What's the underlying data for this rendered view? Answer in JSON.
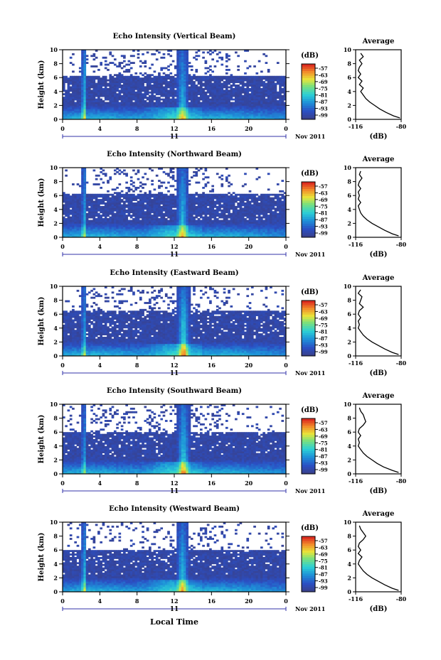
{
  "figure": {
    "xlabel": "Local Time"
  },
  "chart_data": [
    {
      "type": "heatmap",
      "title": "Echo Intensity (Vertical Beam)",
      "ylabel": "Height (km)",
      "xlim": [
        0,
        24
      ],
      "ylim": [
        0,
        10
      ],
      "x_ticks": [
        "0",
        "4",
        "8",
        "12",
        "16",
        "20",
        "0"
      ],
      "y_ticks": [
        "0",
        "2",
        "4",
        "6",
        "8",
        "10"
      ],
      "date_label": "11",
      "date_right": "Nov 2011",
      "colorbar": {
        "unit": "(dB)",
        "ticks": [
          "-57",
          "-63",
          "-69",
          "-75",
          "-81",
          "-87",
          "-93",
          "-99"
        ]
      },
      "events": [
        {
          "time": 2.3,
          "strength": 1.0
        },
        {
          "time": 12.9,
          "strength": 0.75
        }
      ],
      "layer_top_km": 6.3,
      "average_profile": {
        "title": "Average",
        "xlabel": "(dB)",
        "xlim": [
          -116,
          -80
        ],
        "ylim": [
          0,
          10
        ],
        "x_ticks": [
          "-116",
          "-80"
        ],
        "y_ticks": [
          "0",
          "2",
          "4",
          "6",
          "8",
          "10"
        ],
        "height_km": [
          0.2,
          0.5,
          1.0,
          1.5,
          2.0,
          2.5,
          3.0,
          3.5,
          4.0,
          4.5,
          5.0,
          5.5,
          6.0,
          6.5,
          7.0,
          7.5,
          8.0,
          8.5,
          9.0,
          9.5
        ],
        "value_db": [
          -81,
          -86,
          -92,
          -97,
          -101,
          -105,
          -108,
          -110,
          -112,
          -110,
          -113,
          -111,
          -114,
          -112,
          -114,
          -113,
          -111,
          -113,
          -110,
          -112
        ]
      }
    },
    {
      "type": "heatmap",
      "title": "Echo Intensity (Northward Beam)",
      "ylabel": "Height (km)",
      "xlim": [
        0,
        24
      ],
      "ylim": [
        0,
        10
      ],
      "x_ticks": [
        "0",
        "4",
        "8",
        "12",
        "16",
        "20",
        "0"
      ],
      "y_ticks": [
        "0",
        "2",
        "4",
        "6",
        "8",
        "10"
      ],
      "date_label": "11",
      "date_right": "Nov 2011",
      "colorbar": {
        "unit": "(dB)",
        "ticks": [
          "-57",
          "-63",
          "-69",
          "-75",
          "-81",
          "-87",
          "-93",
          "-99"
        ]
      },
      "events": [
        {
          "time": 2.3,
          "strength": 0.8
        },
        {
          "time": 12.9,
          "strength": 0.8
        }
      ],
      "layer_top_km": 6.2,
      "average_profile": {
        "title": "Average",
        "xlabel": "(dB)",
        "xlim": [
          -116,
          -80
        ],
        "ylim": [
          0,
          10
        ],
        "x_ticks": [
          "-116",
          "-80"
        ],
        "y_ticks": [
          "0",
          "2",
          "4",
          "6",
          "8",
          "10"
        ],
        "height_km": [
          0.2,
          0.5,
          1.0,
          1.5,
          2.0,
          2.5,
          3.0,
          3.5,
          4.0,
          4.5,
          5.0,
          5.5,
          6.0,
          6.5,
          7.0,
          7.5,
          8.0,
          8.5,
          9.0,
          9.5
        ],
        "value_db": [
          -82,
          -87,
          -93,
          -98,
          -103,
          -107,
          -110,
          -112,
          -113,
          -114,
          -112,
          -114,
          -113,
          -114,
          -112,
          -114,
          -113,
          -111,
          -113,
          -112
        ]
      }
    },
    {
      "type": "heatmap",
      "title": "Echo Intensity (Eastward Beam)",
      "ylabel": "Height (km)",
      "xlim": [
        0,
        24
      ],
      "ylim": [
        0,
        10
      ],
      "x_ticks": [
        "0",
        "4",
        "8",
        "12",
        "16",
        "20",
        "0"
      ],
      "y_ticks": [
        "0",
        "2",
        "4",
        "6",
        "8",
        "10"
      ],
      "date_label": "11",
      "date_right": "Nov 2011",
      "colorbar": {
        "unit": "(dB)",
        "ticks": [
          "-57",
          "-63",
          "-69",
          "-75",
          "-81",
          "-87",
          "-93",
          "-99"
        ]
      },
      "events": [
        {
          "time": 2.3,
          "strength": 0.8
        },
        {
          "time": 13.0,
          "strength": 1.0
        }
      ],
      "layer_top_km": 6.4,
      "average_profile": {
        "title": "Average",
        "xlabel": "(dB)",
        "xlim": [
          -116,
          -80
        ],
        "ylim": [
          0,
          10
        ],
        "x_ticks": [
          "-116",
          "-80"
        ],
        "y_ticks": [
          "0",
          "2",
          "4",
          "6",
          "8",
          "10"
        ],
        "height_km": [
          0.2,
          0.5,
          1.0,
          1.5,
          2.0,
          2.5,
          3.0,
          3.5,
          4.0,
          4.5,
          5.0,
          5.5,
          6.0,
          6.5,
          7.0,
          7.5,
          8.0,
          8.5,
          9.0,
          9.5
        ],
        "value_db": [
          -82,
          -87,
          -93,
          -98,
          -103,
          -107,
          -110,
          -112,
          -114,
          -113,
          -114,
          -112,
          -114,
          -113,
          -110,
          -113,
          -112,
          -111,
          -114,
          -112
        ]
      }
    },
    {
      "type": "heatmap",
      "title": "Echo Intensity (Southward Beam)",
      "ylabel": "Height (km)",
      "xlim": [
        0,
        24
      ],
      "ylim": [
        0,
        10
      ],
      "x_ticks": [
        "0",
        "4",
        "8",
        "12",
        "16",
        "20",
        "0"
      ],
      "y_ticks": [
        "0",
        "2",
        "4",
        "6",
        "8",
        "10"
      ],
      "date_label": "11",
      "date_right": "Nov 2011",
      "colorbar": {
        "unit": "(dB)",
        "ticks": [
          "-57",
          "-63",
          "-69",
          "-75",
          "-81",
          "-87",
          "-93",
          "-99"
        ]
      },
      "events": [
        {
          "time": 2.3,
          "strength": 0.7
        },
        {
          "time": 13.0,
          "strength": 0.9
        }
      ],
      "layer_top_km": 6.1,
      "average_profile": {
        "title": "Average",
        "xlabel": "(dB)",
        "xlim": [
          -116,
          -80
        ],
        "ylim": [
          0,
          10
        ],
        "x_ticks": [
          "-116",
          "-80"
        ],
        "y_ticks": [
          "0",
          "2",
          "4",
          "6",
          "8",
          "10"
        ],
        "height_km": [
          0.2,
          0.5,
          1.0,
          1.5,
          2.0,
          2.5,
          3.0,
          3.5,
          4.0,
          4.5,
          5.0,
          5.5,
          6.0,
          6.5,
          7.0,
          7.5,
          8.0,
          8.5,
          9.0,
          9.5
        ],
        "value_db": [
          -82,
          -87,
          -94,
          -99,
          -103,
          -107,
          -110,
          -112,
          -114,
          -113,
          -114,
          -112,
          -114,
          -113,
          -110,
          -108,
          -109,
          -110,
          -112,
          -113
        ]
      }
    },
    {
      "type": "heatmap",
      "title": "Echo Intensity (Westward Beam)",
      "ylabel": "Height (km)",
      "xlim": [
        0,
        24
      ],
      "ylim": [
        0,
        10
      ],
      "x_ticks": [
        "0",
        "4",
        "8",
        "12",
        "16",
        "20",
        "0"
      ],
      "y_ticks": [
        "0",
        "2",
        "4",
        "6",
        "8",
        "10"
      ],
      "date_label": "11",
      "date_right": "Nov 2011",
      "colorbar": {
        "unit": "(dB)",
        "ticks": [
          "-57",
          "-63",
          "-69",
          "-75",
          "-81",
          "-87",
          "-93",
          "-99"
        ]
      },
      "events": [
        {
          "time": 2.3,
          "strength": 0.9
        },
        {
          "time": 12.9,
          "strength": 0.8
        }
      ],
      "layer_top_km": 6.0,
      "average_profile": {
        "title": "Average",
        "xlabel": "(dB)",
        "xlim": [
          -116,
          -80
        ],
        "ylim": [
          0,
          10
        ],
        "x_ticks": [
          "-116",
          "-80"
        ],
        "y_ticks": [
          "0",
          "2",
          "4",
          "6",
          "8",
          "10"
        ],
        "height_km": [
          0.2,
          0.5,
          1.0,
          1.5,
          2.0,
          2.5,
          3.0,
          3.5,
          4.0,
          4.5,
          5.0,
          5.5,
          6.0,
          6.5,
          7.0,
          7.5,
          8.0,
          8.5,
          9.0,
          9.5
        ],
        "value_db": [
          -82,
          -87,
          -93,
          -98,
          -103,
          -107,
          -110,
          -112,
          -114,
          -113,
          -111,
          -114,
          -112,
          -114,
          -113,
          -110,
          -108,
          -110,
          -112,
          -113
        ]
      }
    }
  ]
}
